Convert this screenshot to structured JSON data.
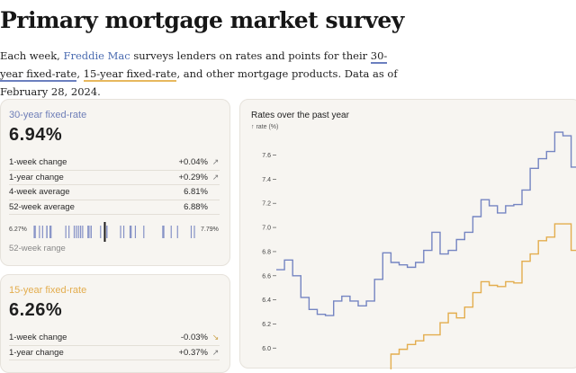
{
  "header": {
    "title": "Primary mortgage market survey",
    "intro": {
      "part1": "Each week, ",
      "link_freddie": "Freddie Mac",
      "part2": " surveys lenders on rates and points for their ",
      "link_30": "30-year fixed-rate",
      "part3": ", ",
      "link_15": "15-year fixed-rate",
      "part4": ", and other mortgage products. Data as of February 28, 2024."
    }
  },
  "cards": [
    {
      "label": "30-year fixed-rate",
      "value": "6.94%",
      "accent": "#6f7fb8",
      "stats": [
        {
          "label": "1-week change",
          "value": "+0.04%",
          "arrow": "up"
        },
        {
          "label": "1-year change",
          "value": "+0.29%",
          "arrow": "up"
        },
        {
          "label": "4-week average",
          "value": "6.81%",
          "arrow": ""
        },
        {
          "label": "52-week average",
          "value": "6.88%",
          "arrow": ""
        }
      ],
      "range_low": "6.27%",
      "range_high": "7.79%",
      "range_label": "52-week range"
    },
    {
      "label": "15-year fixed-rate",
      "value": "6.26%",
      "accent": "#e3ad4e",
      "stats": [
        {
          "label": "1-week change",
          "value": "-0.03%",
          "arrow": "down"
        },
        {
          "label": "1-year change",
          "value": "+0.37%",
          "arrow": "up"
        }
      ]
    }
  ],
  "chart_panel": {
    "title": "Rates over the past year",
    "unit_label": "↑ rate (%)"
  },
  "chart_data": {
    "type": "line",
    "title": "Rates over the past year",
    "ylabel": "rate (%)",
    "xlabel": "",
    "ylim": [
      5.95,
      7.85
    ],
    "yticks": [
      6.0,
      6.2,
      6.4,
      6.6,
      6.8,
      7.0,
      7.2,
      7.4,
      7.6
    ],
    "grid": false,
    "x": [
      "2023-03-02",
      "2023-03-09",
      "2023-03-16",
      "2023-03-23",
      "2023-03-30",
      "2023-04-06",
      "2023-04-13",
      "2023-04-20",
      "2023-04-27",
      "2023-05-04",
      "2023-05-11",
      "2023-05-18",
      "2023-05-25",
      "2023-06-01",
      "2023-06-08",
      "2023-06-15",
      "2023-06-22",
      "2023-06-29",
      "2023-07-06",
      "2023-07-13",
      "2023-07-20",
      "2023-07-27",
      "2023-08-03",
      "2023-08-10",
      "2023-08-17",
      "2023-08-24",
      "2023-08-31",
      "2023-09-07",
      "2023-09-14",
      "2023-09-21",
      "2023-09-28",
      "2023-10-05",
      "2023-10-12",
      "2023-10-19",
      "2023-10-26",
      "2023-11-02",
      "2023-11-09"
    ],
    "series": [
      {
        "name": "30-year fixed-rate",
        "color": "#7585c2",
        "values": [
          6.65,
          6.73,
          6.6,
          6.42,
          6.32,
          6.28,
          6.27,
          6.39,
          6.43,
          6.39,
          6.35,
          6.39,
          6.57,
          6.79,
          6.71,
          6.69,
          6.67,
          6.71,
          6.81,
          6.96,
          6.78,
          6.81,
          6.9,
          6.96,
          7.09,
          7.23,
          7.18,
          7.12,
          7.18,
          7.19,
          7.31,
          7.49,
          7.57,
          7.63,
          7.79,
          7.76,
          7.5
        ]
      },
      {
        "name": "15-year fixed-rate",
        "color": "#e3ad4e",
        "values": [
          null,
          null,
          null,
          null,
          null,
          null,
          null,
          null,
          null,
          null,
          null,
          null,
          null,
          5.75,
          5.95,
          5.99,
          6.03,
          6.06,
          6.11,
          6.11,
          6.21,
          6.29,
          6.25,
          6.34,
          6.46,
          6.55,
          6.52,
          6.51,
          6.55,
          6.54,
          6.72,
          6.78,
          6.89,
          6.92,
          7.03,
          7.03,
          6.81
        ]
      }
    ]
  }
}
